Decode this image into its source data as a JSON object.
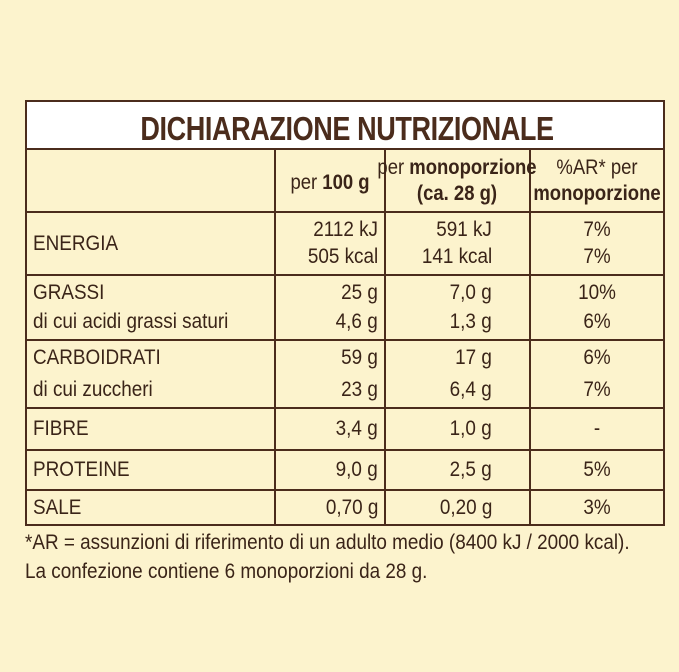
{
  "title": "DICHIARAZIONE NUTRIZIONALE",
  "headers": [
    [
      [
        {
          "text": "per ",
          "bold": false
        },
        {
          "text": "100 g",
          "bold": true
        }
      ]
    ],
    [
      [
        {
          "text": "per ",
          "bold": false
        },
        {
          "text": "monoporzione",
          "bold": true
        }
      ],
      [
        {
          "text": "(ca. 28 g)",
          "bold": true
        }
      ]
    ],
    [
      [
        {
          "text": "%AR* per",
          "bold": false
        }
      ],
      [
        {
          "text": "monoporzione",
          "bold": true
        }
      ]
    ]
  ],
  "rows": [
    {
      "labels": [
        "ENERGIA"
      ],
      "values": [
        [
          "2112 kJ",
          "505 kcal"
        ],
        [
          "591 kJ",
          "141 kcal"
        ],
        [
          "7%",
          "7%"
        ]
      ]
    },
    {
      "labels": [
        "GRASSI",
        "di cui acidi grassi saturi"
      ],
      "values": [
        [
          "25 g",
          "4,6 g"
        ],
        [
          "7,0 g",
          "1,3 g"
        ],
        [
          "10%",
          "6%"
        ]
      ]
    },
    {
      "labels": [
        "CARBOIDRATI",
        "di cui zuccheri"
      ],
      "values": [
        [
          "59 g",
          "23 g"
        ],
        [
          "17 g",
          "6,4 g"
        ],
        [
          "6%",
          "7%"
        ]
      ]
    },
    {
      "labels": [
        "FIBRE"
      ],
      "values": [
        [
          "3,4 g"
        ],
        [
          "1,0 g"
        ],
        [
          "-"
        ]
      ]
    },
    {
      "labels": [
        "PROTEINE"
      ],
      "values": [
        [
          "9,0 g"
        ],
        [
          "2,5 g"
        ],
        [
          "5%"
        ]
      ]
    },
    {
      "labels": [
        "SALE"
      ],
      "values": [
        [
          "0,70 g"
        ],
        [
          "0,20 g"
        ],
        [
          "3%"
        ]
      ]
    }
  ],
  "footnote": [
    "*AR = assunzioni di riferimento di un adulto medio (8400 kJ / 2000 kcal).",
    "La confezione contiene 6 monoporzioni da 28 g."
  ]
}
